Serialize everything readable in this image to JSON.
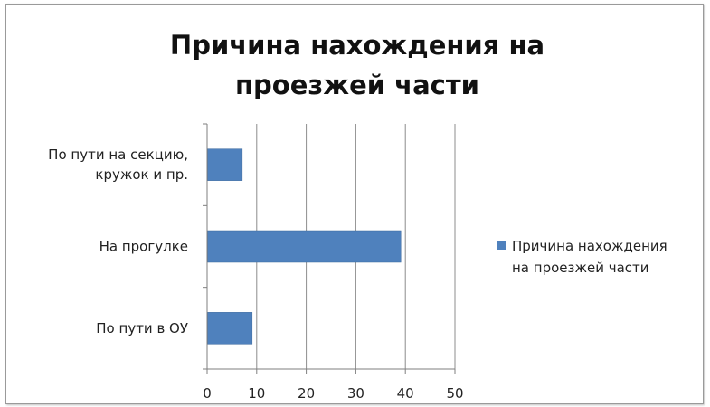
{
  "chart_data": {
    "type": "bar",
    "orientation": "horizontal",
    "title_lines": [
      "Причина нахождения на",
      "проезжей части"
    ],
    "categories": [
      [
        "По пути на секцию,",
        "кружок и пр."
      ],
      [
        "На прогулке"
      ],
      [
        "По пути в ОУ"
      ]
    ],
    "series": [
      {
        "name_lines": [
          "Причина нахождения",
          "на проезжей части"
        ],
        "values": [
          7,
          39,
          9
        ],
        "color": "#4f81bd"
      }
    ],
    "xlim": [
      0,
      50
    ],
    "x_ticks": [
      "0",
      "10",
      "20",
      "30",
      "40",
      "50"
    ],
    "grid": true,
    "legend_position": "right"
  }
}
